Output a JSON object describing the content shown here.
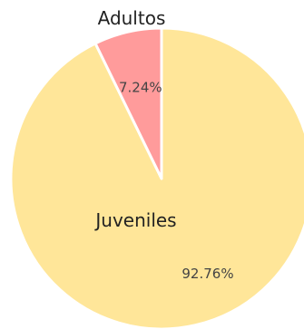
{
  "chart_data": {
    "type": "pie",
    "slices": [
      {
        "label": "Juveniles",
        "value": 92.76,
        "value_label": "92.76%",
        "color": "#FFE699"
      },
      {
        "label": "Adultos",
        "value": 7.24,
        "value_label": "7.24%",
        "color": "#FF9B9B"
      }
    ],
    "start_angle": "12 o'clock",
    "direction": "clockwise",
    "slice_border_color": "#ffffff"
  }
}
